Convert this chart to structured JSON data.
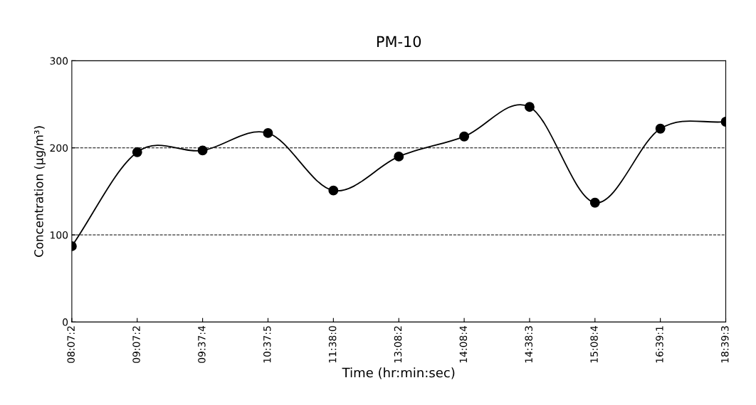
{
  "chart_data": {
    "type": "line",
    "title": "PM-10",
    "xlabel": "Time (hr:min:sec)",
    "ylabel": "Concentration (μg/m³)",
    "categories": [
      "08:07:2",
      "09:07:2",
      "09:37:4",
      "10:37:5",
      "11:38:0",
      "13:08:2",
      "14:08:4",
      "14:38:3",
      "15:08:4",
      "16:39:1",
      "18:39:3"
    ],
    "series": [
      {
        "color": "#000000",
        "values": [
          87,
          195,
          197,
          217,
          151,
          190,
          213,
          247,
          137,
          222,
          230
        ]
      }
    ],
    "ylim": [
      0,
      300
    ],
    "yticks": [
      0,
      100,
      200,
      300
    ],
    "ref_lines": [
      {
        "axis": "y",
        "value": 100,
        "line_style": "dashed",
        "color": "#000000"
      },
      {
        "axis": "y",
        "value": 200,
        "line_style": "dashed",
        "color": "#000000"
      }
    ],
    "marker": "circle",
    "line_style": "solid",
    "grid": false,
    "legend": false
  }
}
